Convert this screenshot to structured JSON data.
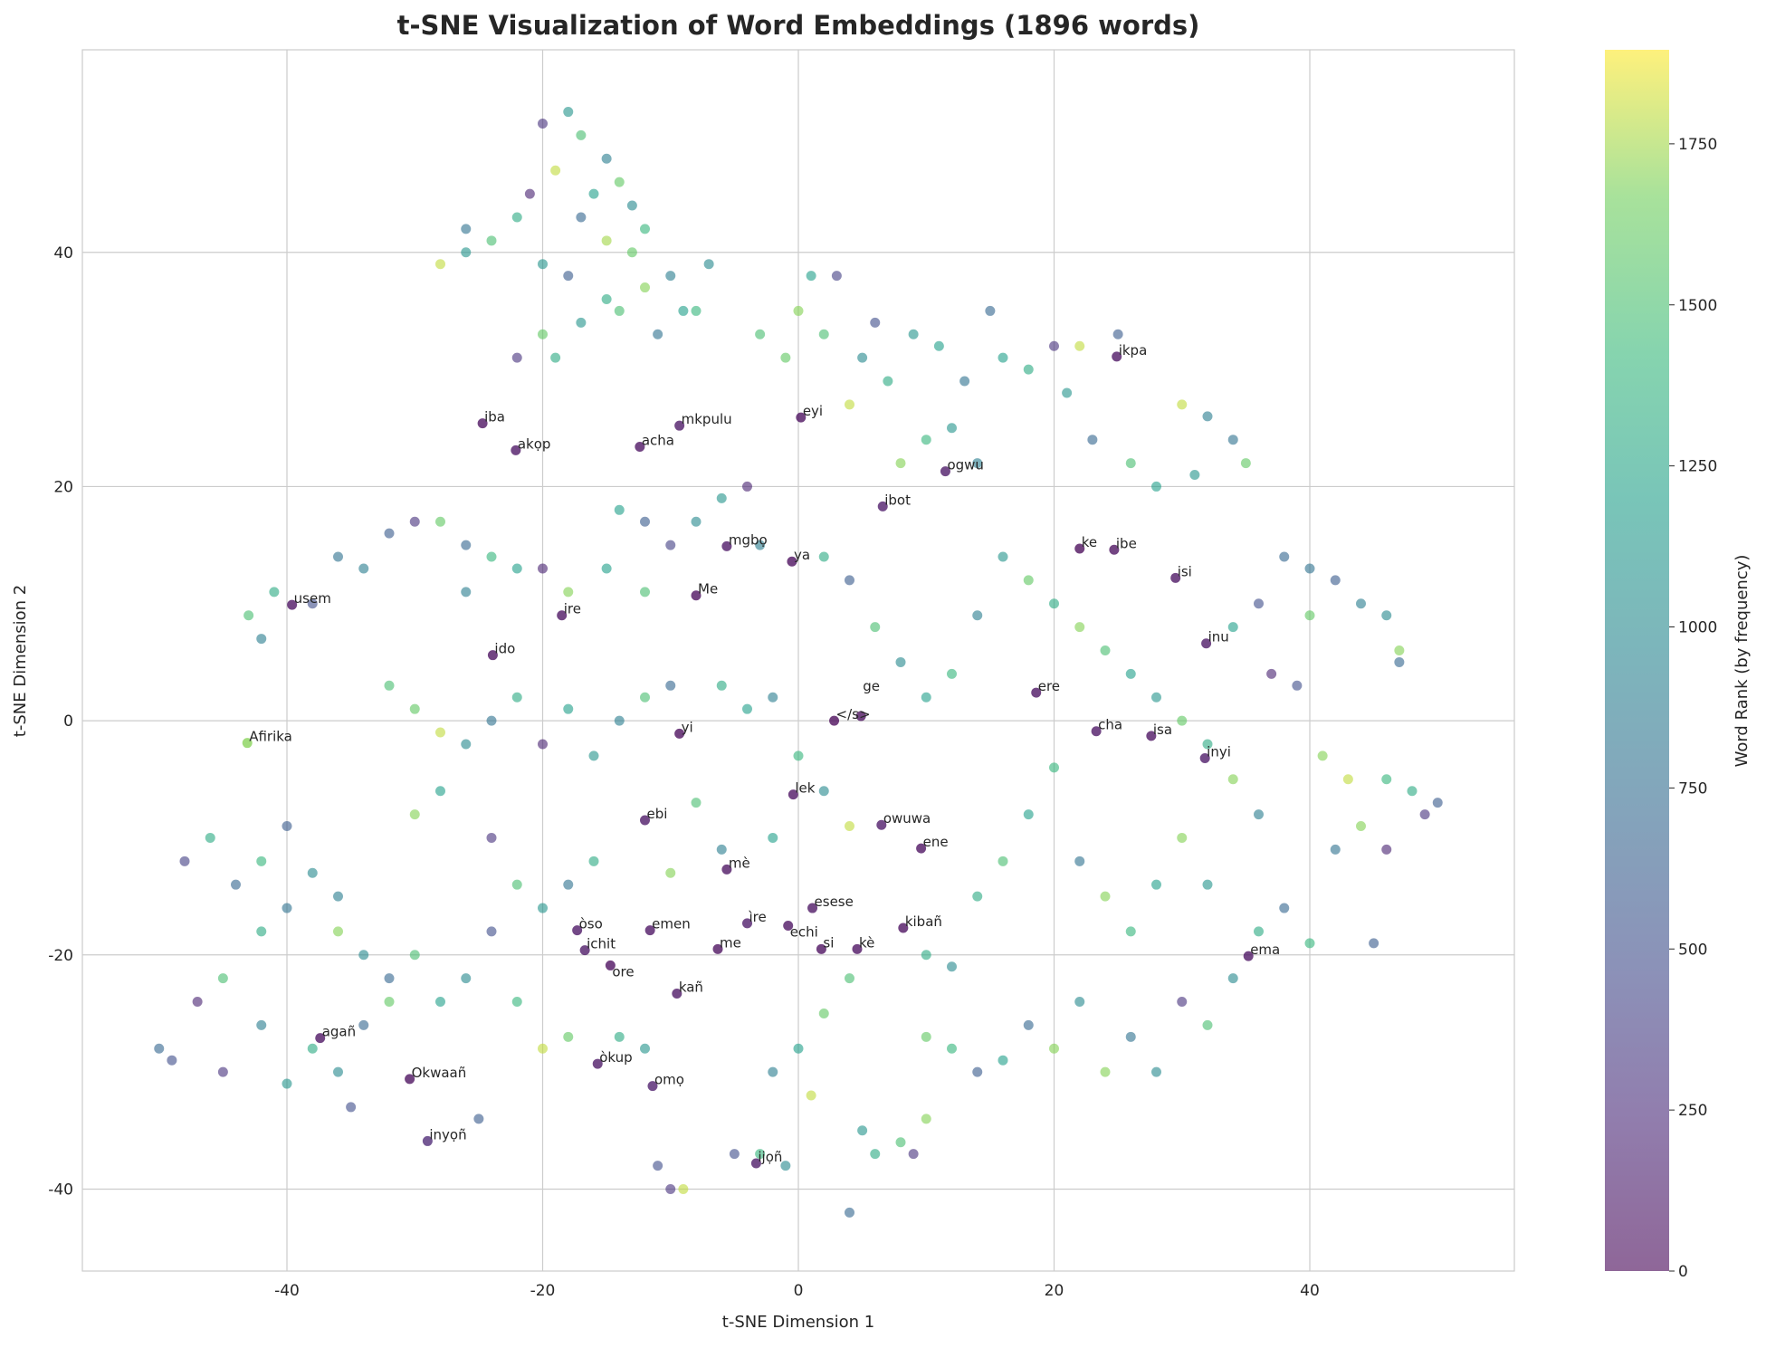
{
  "chart_data": {
    "type": "scatter",
    "title": "t-SNE Visualization of Word Embeddings (1896 words)",
    "xlabel": "t-SNE Dimension 1",
    "ylabel": "t-SNE Dimension 2",
    "xlim": [
      -56,
      56
    ],
    "ylim": [
      -47,
      57.3
    ],
    "xticks": [
      -40,
      -20,
      0,
      20,
      40
    ],
    "yticks": [
      -40,
      -20,
      0,
      20,
      40
    ],
    "xtick_labels": [
      "-40",
      "-20",
      "0",
      "20",
      "40"
    ],
    "ytick_labels": [
      "-40",
      "-20",
      "0",
      "20",
      "40"
    ],
    "grid": true,
    "colormap": "viridis",
    "point_alpha": 0.6,
    "colorbar": {
      "label": "Word Rank (by frequency)",
      "range": [
        0,
        1896
      ],
      "ticks": [
        0,
        250,
        500,
        750,
        1000,
        1250,
        1500,
        1750
      ],
      "tick_labels": [
        "0",
        "250",
        "500",
        "750",
        "1000",
        "1250",
        "1500",
        "1750"
      ]
    },
    "labeled_points": [
      {
        "word": "ikpa",
        "x": 24.9,
        "y": 31.1,
        "rank": 60
      },
      {
        "word": "iba",
        "x": -24.7,
        "y": 25.4,
        "rank": 40
      },
      {
        "word": "akọp",
        "x": -22.1,
        "y": 23.1,
        "rank": 70
      },
      {
        "word": "acha",
        "x": -12.4,
        "y": 23.4,
        "rank": 50
      },
      {
        "word": "mkpulu",
        "x": -9.3,
        "y": 25.2,
        "rank": 80
      },
      {
        "word": "eyi",
        "x": 0.2,
        "y": 25.9,
        "rank": 30
      },
      {
        "word": "ogwu",
        "x": 11.5,
        "y": 21.3,
        "rank": 90
      },
      {
        "word": "ibot",
        "x": 6.6,
        "y": 18.3,
        "rank": 100
      },
      {
        "word": "mgbọ",
        "x": -5.6,
        "y": 14.9,
        "rank": 75
      },
      {
        "word": "ya",
        "x": -0.5,
        "y": 13.6,
        "rank": 20
      },
      {
        "word": "Me",
        "x": -8.0,
        "y": 10.7,
        "rank": 25
      },
      {
        "word": "ire",
        "x": -18.5,
        "y": 9.0,
        "rank": 55
      },
      {
        "word": "usem",
        "x": -39.6,
        "y": 9.9,
        "rank": 45
      },
      {
        "word": "ke",
        "x": 22.0,
        "y": 14.7,
        "rank": 10
      },
      {
        "word": "ibe",
        "x": 24.7,
        "y": 14.6,
        "rank": 35
      },
      {
        "word": "isi",
        "x": 29.5,
        "y": 12.2,
        "rank": 65
      },
      {
        "word": "inu",
        "x": 31.9,
        "y": 6.6,
        "rank": 85
      },
      {
        "word": "ido",
        "x": -23.9,
        "y": 5.6,
        "rank": 40
      },
      {
        "word": "Afirika",
        "x": -43.1,
        "y": -1.9,
        "rank": 1700
      },
      {
        "word": "ere",
        "x": 18.6,
        "y": 2.4,
        "rank": 60
      },
      {
        "word": "cha",
        "x": 23.3,
        "y": -0.9,
        "rank": 70
      },
      {
        "word": "isa",
        "x": 27.6,
        "y": -1.3,
        "rank": 50
      },
      {
        "word": "inyi",
        "x": 31.8,
        "y": -3.2,
        "rank": 90
      },
      {
        "word": "yi",
        "x": -9.3,
        "y": -1.1,
        "rank": 15
      },
      {
        "word": "</s>",
        "x": 2.8,
        "y": 0.0,
        "rank": 0
      },
      {
        "word": "ge",
        "x": 4.9,
        "y": 0.4,
        "rank": 30
      },
      {
        "word": "lek",
        "x": -0.4,
        "y": -6.3,
        "rank": 45
      },
      {
        "word": "ebi",
        "x": -12.0,
        "y": -8.5,
        "rank": 80
      },
      {
        "word": "owuwa",
        "x": 6.5,
        "y": -8.9,
        "rank": 95
      },
      {
        "word": "ene",
        "x": 9.6,
        "y": -10.9,
        "rank": 40
      },
      {
        "word": "mè",
        "x": -5.6,
        "y": -12.7,
        "rank": 55
      },
      {
        "word": "esese",
        "x": 1.1,
        "y": -16.0,
        "rank": 65
      },
      {
        "word": "òso",
        "x": -17.3,
        "y": -17.9,
        "rank": 75
      },
      {
        "word": "ichit",
        "x": -16.7,
        "y": -19.6,
        "rank": 85
      },
      {
        "word": "emen",
        "x": -11.6,
        "y": -17.9,
        "rank": 60
      },
      {
        "word": "ìre",
        "x": -4.0,
        "y": -17.3,
        "rank": 110
      },
      {
        "word": "echi",
        "x": -0.8,
        "y": -17.5,
        "rank": 50
      },
      {
        "word": "kibañ",
        "x": 8.2,
        "y": -17.7,
        "rank": 40
      },
      {
        "word": "me",
        "x": -6.3,
        "y": -19.5,
        "rank": 35
      },
      {
        "word": "si",
        "x": 1.8,
        "y": -19.5,
        "rank": 25
      },
      {
        "word": "kè",
        "x": 4.6,
        "y": -19.5,
        "rank": 45
      },
      {
        "word": "ore",
        "x": -14.7,
        "y": -20.9,
        "rank": 20
      },
      {
        "word": "ema",
        "x": 35.2,
        "y": -20.1,
        "rank": 60
      },
      {
        "word": "kañ",
        "x": -9.5,
        "y": -23.3,
        "rank": 70
      },
      {
        "word": "agañ",
        "x": -37.4,
        "y": -27.1,
        "rank": 50
      },
      {
        "word": "òkup",
        "x": -15.7,
        "y": -29.3,
        "rank": 80
      },
      {
        "word": "Okwaañ",
        "x": -30.4,
        "y": -30.6,
        "rank": 30
      },
      {
        "word": "omọ",
        "x": -11.4,
        "y": -31.2,
        "rank": 120
      },
      {
        "word": "inyọñ",
        "x": -29.0,
        "y": -35.9,
        "rank": 200
      },
      {
        "word": "ijọñ",
        "x": -3.3,
        "y": -37.8,
        "rank": 90
      }
    ],
    "points": [
      [
        -20,
        51,
        300
      ],
      [
        -18,
        52,
        1100
      ],
      [
        -17,
        50,
        1500
      ],
      [
        -15,
        48,
        900
      ],
      [
        -14,
        46,
        1600
      ],
      [
        -16,
        45,
        1200
      ],
      [
        -19,
        47,
        1800
      ],
      [
        -21,
        45,
        200
      ],
      [
        -13,
        44,
        1000
      ],
      [
        -12,
        42,
        1400
      ],
      [
        -15,
        41,
        1750
      ],
      [
        -17,
        43,
        700
      ],
      [
        -22,
        43,
        1300
      ],
      [
        -24,
        41,
        1500
      ],
      [
        -26,
        42,
        800
      ],
      [
        -28,
        39,
        1800
      ],
      [
        -20,
        39,
        1100
      ],
      [
        -18,
        38,
        600
      ],
      [
        -15,
        36,
        1300
      ],
      [
        -12,
        37,
        1700
      ],
      [
        -10,
        38,
        900
      ],
      [
        -9,
        35,
        1200
      ],
      [
        -11,
        33,
        800
      ],
      [
        -14,
        35,
        1500
      ],
      [
        -17,
        34,
        1100
      ],
      [
        -20,
        33,
        1600
      ],
      [
        -22,
        31,
        300
      ],
      [
        -19,
        31,
        1300
      ],
      [
        -7,
        39,
        1000
      ],
      [
        -8,
        35,
        1400
      ],
      [
        -26,
        40,
        1100
      ],
      [
        -13,
        40,
        1600
      ],
      [
        1,
        38,
        1200
      ],
      [
        3,
        38,
        400
      ],
      [
        0,
        35,
        1700
      ],
      [
        2,
        33,
        1500
      ],
      [
        5,
        31,
        1000
      ],
      [
        4,
        27,
        1800
      ],
      [
        7,
        29,
        1300
      ],
      [
        9,
        33,
        1100
      ],
      [
        6,
        34,
        500
      ],
      [
        11,
        32,
        1200
      ],
      [
        13,
        29,
        800
      ],
      [
        15,
        35,
        700
      ],
      [
        -1,
        31,
        1600
      ],
      [
        -3,
        33,
        1500
      ],
      [
        10,
        24,
        1400
      ],
      [
        12,
        25,
        1100
      ],
      [
        8,
        22,
        1700
      ],
      [
        14,
        22,
        900
      ],
      [
        16,
        31,
        1200
      ],
      [
        18,
        30,
        1300
      ],
      [
        20,
        32,
        300
      ],
      [
        22,
        32,
        1800
      ],
      [
        25,
        33,
        600
      ],
      [
        21,
        28,
        1100
      ],
      [
        23,
        24,
        700
      ],
      [
        26,
        22,
        1500
      ],
      [
        28,
        20,
        1200
      ],
      [
        30,
        27,
        1800
      ],
      [
        32,
        26,
        900
      ],
      [
        34,
        24,
        800
      ],
      [
        35,
        22,
        1600
      ],
      [
        31,
        21,
        1100
      ],
      [
        38,
        14,
        700
      ],
      [
        40,
        13,
        800
      ],
      [
        42,
        12,
        600
      ],
      [
        44,
        10,
        900
      ],
      [
        46,
        9,
        1000
      ],
      [
        47,
        6,
        1700
      ],
      [
        47,
        5,
        700
      ],
      [
        40,
        9,
        1600
      ],
      [
        36,
        10,
        500
      ],
      [
        34,
        8,
        1200
      ],
      [
        37,
        4,
        200
      ],
      [
        39,
        3,
        500
      ],
      [
        41,
        -3,
        1700
      ],
      [
        43,
        -5,
        1800
      ],
      [
        46,
        -5,
        1400
      ],
      [
        48,
        -6,
        1300
      ],
      [
        49,
        -8,
        300
      ],
      [
        50,
        -7,
        600
      ],
      [
        44,
        -9,
        1700
      ],
      [
        42,
        -11,
        800
      ],
      [
        46,
        -11,
        200
      ],
      [
        45,
        -19,
        600
      ],
      [
        40,
        -19,
        1400
      ],
      [
        38,
        -16,
        700
      ],
      [
        36,
        -18,
        1300
      ],
      [
        34,
        -22,
        1000
      ],
      [
        32,
        -26,
        1500
      ],
      [
        30,
        -24,
        300
      ],
      [
        28,
        -30,
        1000
      ],
      [
        26,
        -27,
        800
      ],
      [
        24,
        -30,
        1700
      ],
      [
        22,
        -24,
        1000
      ],
      [
        20,
        -28,
        1700
      ],
      [
        18,
        -26,
        700
      ],
      [
        16,
        -29,
        1200
      ],
      [
        14,
        -30,
        600
      ],
      [
        12,
        -28,
        1400
      ],
      [
        10,
        -27,
        1600
      ],
      [
        20,
        10,
        1300
      ],
      [
        18,
        12,
        1600
      ],
      [
        16,
        14,
        1100
      ],
      [
        14,
        9,
        900
      ],
      [
        12,
        4,
        1400
      ],
      [
        10,
        2,
        1200
      ],
      [
        8,
        5,
        1000
      ],
      [
        6,
        8,
        1500
      ],
      [
        4,
        12,
        600
      ],
      [
        2,
        14,
        1300
      ],
      [
        22,
        8,
        1700
      ],
      [
        24,
        6,
        1500
      ],
      [
        26,
        4,
        1200
      ],
      [
        28,
        2,
        1100
      ],
      [
        30,
        0,
        1600
      ],
      [
        32,
        -2,
        1300
      ],
      [
        34,
        -5,
        1700
      ],
      [
        36,
        -8,
        900
      ],
      [
        20,
        -4,
        1400
      ],
      [
        18,
        -8,
        1200
      ],
      [
        16,
        -12,
        1500
      ],
      [
        14,
        -15,
        1300
      ],
      [
        22,
        -12,
        800
      ],
      [
        24,
        -15,
        1700
      ],
      [
        26,
        -18,
        1400
      ],
      [
        28,
        -14,
        1200
      ],
      [
        30,
        -10,
        1700
      ],
      [
        32,
        -14,
        1100
      ],
      [
        12,
        -21,
        1000
      ],
      [
        10,
        -20,
        1300
      ],
      [
        4,
        -22,
        1500
      ],
      [
        2,
        -25,
        1600
      ],
      [
        0,
        -28,
        1200
      ],
      [
        -2,
        -30,
        900
      ],
      [
        1,
        -32,
        1800
      ],
      [
        5,
        -35,
        1100
      ],
      [
        6,
        -37,
        1300
      ],
      [
        8,
        -36,
        1500
      ],
      [
        10,
        -34,
        1700
      ],
      [
        9,
        -37,
        300
      ],
      [
        4,
        -42,
        700
      ],
      [
        -5,
        -37,
        500
      ],
      [
        -3,
        -37,
        1400
      ],
      [
        -1,
        -38,
        1000
      ],
      [
        -10,
        -40,
        300
      ],
      [
        -11,
        -38,
        500
      ],
      [
        -9,
        -40,
        1800
      ],
      [
        -30,
        17,
        300
      ],
      [
        -32,
        16,
        600
      ],
      [
        -28,
        17,
        1600
      ],
      [
        -26,
        15,
        700
      ],
      [
        -24,
        14,
        1400
      ],
      [
        -22,
        13,
        1200
      ],
      [
        -34,
        13,
        900
      ],
      [
        -36,
        14,
        800
      ],
      [
        -38,
        10,
        500
      ],
      [
        -41,
        11,
        1300
      ],
      [
        -43,
        9,
        1500
      ],
      [
        -42,
        7,
        900
      ],
      [
        -26,
        11,
        900
      ],
      [
        -20,
        13,
        200
      ],
      [
        -18,
        11,
        1700
      ],
      [
        -15,
        13,
        1200
      ],
      [
        -12,
        11,
        1500
      ],
      [
        -10,
        15,
        400
      ],
      [
        -8,
        17,
        1000
      ],
      [
        -6,
        19,
        1100
      ],
      [
        -4,
        20,
        200
      ],
      [
        -3,
        15,
        900
      ],
      [
        -12,
        17,
        600
      ],
      [
        -14,
        18,
        1200
      ],
      [
        -32,
        3,
        1500
      ],
      [
        -30,
        1,
        1600
      ],
      [
        -28,
        -1,
        1800
      ],
      [
        -26,
        -2,
        1000
      ],
      [
        -24,
        0,
        800
      ],
      [
        -22,
        2,
        1300
      ],
      [
        -20,
        -2,
        200
      ],
      [
        -18,
        1,
        1200
      ],
      [
        -16,
        -3,
        1100
      ],
      [
        -14,
        0,
        900
      ],
      [
        -12,
        2,
        1500
      ],
      [
        -10,
        3,
        700
      ],
      [
        -6,
        3,
        1300
      ],
      [
        -4,
        1,
        1200
      ],
      [
        -2,
        2,
        900
      ],
      [
        0,
        -3,
        1400
      ],
      [
        2,
        -6,
        1000
      ],
      [
        4,
        -9,
        1800
      ],
      [
        -2,
        -10,
        1200
      ],
      [
        -6,
        -11,
        900
      ],
      [
        -8,
        -7,
        1500
      ],
      [
        -10,
        -13,
        1700
      ],
      [
        -48,
        -12,
        400
      ],
      [
        -46,
        -10,
        1300
      ],
      [
        -44,
        -14,
        700
      ],
      [
        -42,
        -18,
        1300
      ],
      [
        -40,
        -16,
        800
      ],
      [
        -38,
        -13,
        1000
      ],
      [
        -36,
        -18,
        1700
      ],
      [
        -34,
        -20,
        1000
      ],
      [
        -32,
        -22,
        700
      ],
      [
        -30,
        -20,
        1500
      ],
      [
        -28,
        -24,
        1200
      ],
      [
        -26,
        -22,
        1000
      ],
      [
        -24,
        -18,
        500
      ],
      [
        -22,
        -14,
        1500
      ],
      [
        -20,
        -16,
        1100
      ],
      [
        -18,
        -14,
        800
      ],
      [
        -16,
        -12,
        1300
      ],
      [
        -45,
        -22,
        1500
      ],
      [
        -47,
        -24,
        200
      ],
      [
        -50,
        -28,
        700
      ],
      [
        -49,
        -29,
        500
      ],
      [
        -45,
        -30,
        300
      ],
      [
        -42,
        -26,
        900
      ],
      [
        -40,
        -31,
        1100
      ],
      [
        -38,
        -28,
        1300
      ],
      [
        -36,
        -30,
        1000
      ],
      [
        -34,
        -26,
        700
      ],
      [
        -32,
        -24,
        1600
      ],
      [
        -40,
        -9,
        600
      ],
      [
        -42,
        -12,
        1400
      ],
      [
        -36,
        -15,
        900
      ],
      [
        -30,
        -8,
        1700
      ],
      [
        -28,
        -6,
        1200
      ],
      [
        -24,
        -10,
        300
      ],
      [
        -22,
        -24,
        1400
      ],
      [
        -20,
        -28,
        1800
      ],
      [
        -18,
        -27,
        1600
      ],
      [
        -14,
        -27,
        1300
      ],
      [
        -12,
        -28,
        1100
      ],
      [
        -25,
        -34,
        600
      ],
      [
        -35,
        -33,
        500
      ]
    ]
  }
}
